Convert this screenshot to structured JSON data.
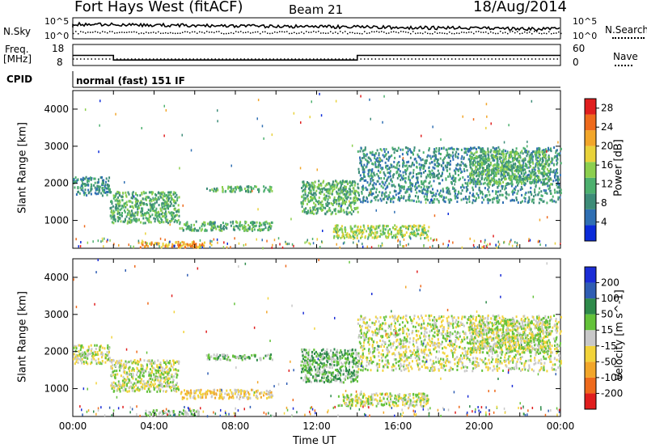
{
  "header": {
    "station": "Fort Hays West (fitACF)",
    "beam": "Beam 21",
    "date": "18/Aug/2014"
  },
  "top_panels": {
    "nsky": {
      "label": "N.Sky",
      "ticks": [
        "10^5",
        "10^0"
      ]
    },
    "nsearch": {
      "label": "N.Search",
      "ticks": [
        "10^5",
        "10^0"
      ]
    },
    "freq": {
      "label_line1": "Freq.",
      "label_line2": "[MHz]",
      "ticks": [
        "18",
        "8"
      ],
      "values_mhz": [
        13,
        10,
        13
      ],
      "breaks_hours": [
        2,
        14
      ]
    },
    "nave": {
      "label": "Nave",
      "ticks": [
        "60",
        "0"
      ]
    },
    "cpid": {
      "label": "CPID",
      "text": "normal (fast) 151 IF"
    }
  },
  "colors": {
    "power": [
      "#0b2bd9",
      "#2f6fb3",
      "#3d8c78",
      "#4db06e",
      "#8ccf4e",
      "#e8d23a",
      "#f2a62a",
      "#ee6a1c",
      "#e01e1e"
    ],
    "velocity": [
      "#1b2dd6",
      "#2f5db3",
      "#2e8a4a",
      "#64c23a",
      "#c8c8c8",
      "#f2d33a",
      "#f2a62a",
      "#ee6a1c",
      "#e01e1e"
    ]
  },
  "chart_data": [
    {
      "type": "heatmap",
      "name": "power",
      "ylabel": "Slant Range [km]",
      "xlabel": "",
      "yticks": [
        "1000",
        "2000",
        "3000",
        "4000"
      ],
      "xticks": [],
      "ylim": [
        250,
        4500
      ],
      "xlim": [
        0,
        24
      ],
      "colorbar": {
        "label": "Power [dB]",
        "ticks": [
          "4",
          "8",
          "12",
          "16",
          "20",
          "24",
          "28"
        ],
        "range": [
          0,
          30
        ]
      },
      "regions": [
        {
          "t0": 0.0,
          "t1": 1.8,
          "r0": 1700,
          "r1": 2200,
          "level": 2
        },
        {
          "t0": 1.8,
          "t1": 5.2,
          "r0": 950,
          "r1": 1800,
          "level": 3
        },
        {
          "t0": 3.2,
          "t1": 6.8,
          "r0": 300,
          "r1": 450,
          "level": 6
        },
        {
          "t0": 5.2,
          "t1": 9.8,
          "r0": 750,
          "r1": 1000,
          "level": 3
        },
        {
          "t0": 6.5,
          "t1": 9.8,
          "r0": 1800,
          "r1": 1950,
          "level": 3
        },
        {
          "t0": 11.2,
          "t1": 14.0,
          "r0": 1200,
          "r1": 2100,
          "level": 3
        },
        {
          "t0": 12.8,
          "t1": 17.5,
          "r0": 550,
          "r1": 900,
          "level": 4
        },
        {
          "t0": 14.0,
          "t1": 24.0,
          "r0": 1500,
          "r1": 3000,
          "level": 2
        },
        {
          "t0": 19.5,
          "t1": 23.5,
          "r0": 2000,
          "r1": 2900,
          "level": 3
        }
      ]
    },
    {
      "type": "heatmap",
      "name": "velocity",
      "ylabel": "Slant Range [km]",
      "xlabel": "Time UT",
      "yticks": [
        "1000",
        "2000",
        "3000",
        "4000"
      ],
      "xticks": [
        "00:00",
        "04:00",
        "08:00",
        "12:00",
        "16:00",
        "20:00",
        "00:00"
      ],
      "ylim": [
        250,
        4500
      ],
      "xlim": [
        0,
        24
      ],
      "colorbar": {
        "label": "Velocity [m s^-1]",
        "ticks": [
          "200",
          "100",
          "50",
          "15",
          "-15",
          "-50",
          "-100",
          "-200"
        ]
      },
      "regions": [
        {
          "t0": 0.0,
          "t1": 1.8,
          "r0": 1700,
          "r1": 2200,
          "level": 4
        },
        {
          "t0": 1.8,
          "t1": 5.2,
          "r0": 950,
          "r1": 1800,
          "level": 4
        },
        {
          "t0": 3.5,
          "t1": 6.2,
          "r0": 300,
          "r1": 450,
          "level": 3
        },
        {
          "t0": 5.2,
          "t1": 9.8,
          "r0": 750,
          "r1": 1000,
          "level": 5
        },
        {
          "t0": 6.5,
          "t1": 9.8,
          "r0": 1800,
          "r1": 1950,
          "level": 3
        },
        {
          "t0": 11.2,
          "t1": 14.0,
          "r0": 1200,
          "r1": 2100,
          "level": 3
        },
        {
          "t0": 13.0,
          "t1": 17.5,
          "r0": 550,
          "r1": 900,
          "level": 4
        },
        {
          "t0": 14.0,
          "t1": 24.0,
          "r0": 1500,
          "r1": 3000,
          "level": 4
        },
        {
          "t0": 19.5,
          "t1": 23.5,
          "r0": 2000,
          "r1": 2900,
          "level": 4
        }
      ]
    }
  ]
}
